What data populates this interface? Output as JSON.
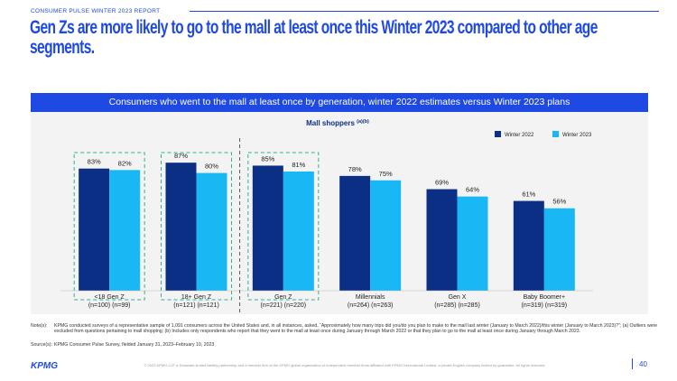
{
  "header": {
    "report": "CONSUMER PULSE WINTER 2023 REPORT",
    "title": "Gen Zs are more likely to go to the mall at least once this Winter 2023 compared to other age segments."
  },
  "banner": "Consumers who went to the mall at least once by generation, winter 2022 estimates versus Winter 2023 plans",
  "chart_data": {
    "type": "bar",
    "title": "Mall shoppers",
    "title_superscript": "(a)(b)",
    "categories": [
      "<18 Gen Z",
      "18+ Gen Z",
      "Gen Z",
      "Millennials",
      "Gen X",
      "Baby Boomer+"
    ],
    "category_samples": [
      "(n=100) (n=99)",
      "(n=121) (n=121)",
      "(n=221) (n=220)",
      "(n=264) (n=263)",
      "(n=285) (n=285)",
      "(n=319) (n=319)"
    ],
    "series": [
      {
        "name": "Winter 2022",
        "color": "#0c2f86",
        "values": [
          83,
          87,
          85,
          78,
          69,
          61
        ],
        "value_labels": [
          "83%",
          "87%",
          "85%",
          "78%",
          "69%",
          "61%"
        ]
      },
      {
        "name": "Winter 2023",
        "color": "#1ab7f5",
        "values": [
          82,
          80,
          81,
          75,
          64,
          56
        ],
        "value_labels": [
          "82%",
          "80%",
          "81%",
          "75%",
          "64%",
          "56%"
        ]
      }
    ],
    "ylim": [
      0,
      100
    ],
    "legend": "top-right"
  },
  "notes": {
    "label": "Note(s):",
    "text": "KPMG conducted surveys of a representative sample of 1,091 consumers across the United States and, in all instances, asked, “Approximately how many trips did you/do you plan to make to the mall last winter (January to March 2022)/this winter (January to March 2023)?”; (a) Outliers were excluded from questions pertaining to mall shopping; (b) Includes only respondents who report that they went to the mall at least once during January through March 2022 or that they plan to go to the mall at least once during January through March 2023."
  },
  "source": {
    "label": "Source(s):",
    "text": "KPMG Consumer Pulse Survey, fielded January 31, 2023–February 10, 2023"
  },
  "footer": {
    "logo": "KPMG",
    "copyright": "© 2023 KPMG LLP, a Delaware limited liability partnership and a member firm of the KPMG global organization of independent member firms affiliated with KPMG International Limited, a private English company limited by guarantee. All rights reserved.",
    "page": 40
  }
}
